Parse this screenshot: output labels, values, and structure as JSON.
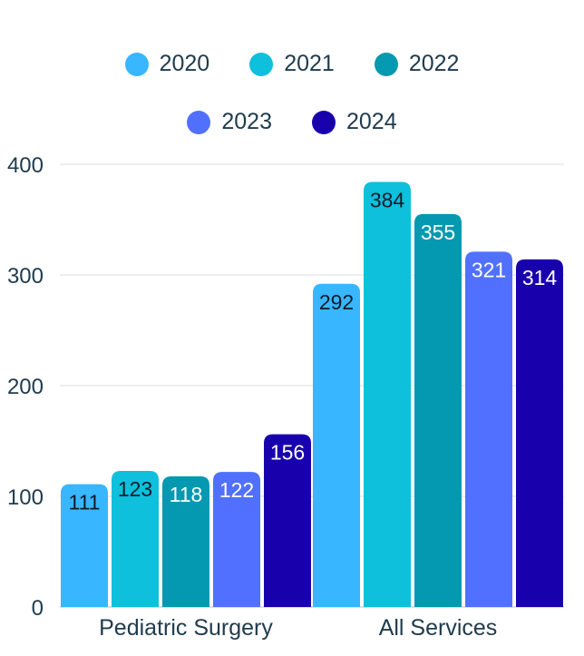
{
  "chart_data": {
    "type": "bar",
    "title": "",
    "xlabel": "",
    "ylabel": "",
    "ylim": [
      0,
      400
    ],
    "yticks": [
      0,
      100,
      200,
      300,
      400
    ],
    "categories": [
      "Pediatric Surgery",
      "All Services"
    ],
    "series": [
      {
        "name": "2020",
        "color": "#38b6ff",
        "label_color": "#0d1b2a",
        "values": [
          111,
          292
        ]
      },
      {
        "name": "2021",
        "color": "#0ec0dc",
        "label_color": "#0d1b2a",
        "values": [
          123,
          384
        ]
      },
      {
        "name": "2022",
        "color": "#0499b0",
        "label_color": "#ffffff",
        "values": [
          118,
          355
        ]
      },
      {
        "name": "2023",
        "color": "#5170ff",
        "label_color": "#ffffff",
        "values": [
          122,
          321
        ]
      },
      {
        "name": "2024",
        "color": "#1800ad",
        "label_color": "#ffffff",
        "values": [
          156,
          314
        ]
      }
    ],
    "legend_position": "top-center",
    "grid": true
  }
}
